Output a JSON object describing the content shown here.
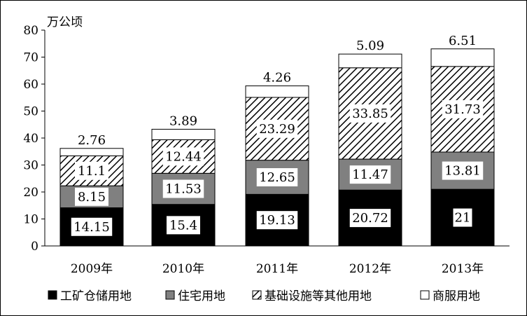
{
  "chart_data": {
    "type": "bar",
    "stacked": true,
    "unit_label": "万公顷",
    "categories": [
      "2009年",
      "2010年",
      "2011年",
      "2012年",
      "2013年"
    ],
    "series": [
      {
        "name": "工矿仓储用地",
        "values": [
          14.15,
          15.4,
          19.13,
          20.72,
          21
        ],
        "fill": "#000000",
        "pattern": "solid",
        "labels": [
          "14.15",
          "15.4",
          "19.13",
          "20.72",
          "21"
        ]
      },
      {
        "name": "住宅用地",
        "values": [
          8.15,
          11.53,
          12.65,
          11.47,
          13.81
        ],
        "fill": "#808080",
        "pattern": "solid",
        "labels": [
          "8.15",
          "11.53",
          "12.65",
          "11.47",
          "13.81"
        ]
      },
      {
        "name": "基础设施等其他用地",
        "values": [
          11.1,
          12.44,
          23.29,
          33.85,
          31.73
        ],
        "fill": "#ffffff",
        "pattern": "diagonal-hatch",
        "labels": [
          "11.1",
          "12.44",
          "23.29",
          "33.85",
          "31.73"
        ]
      },
      {
        "name": "商服用地",
        "values": [
          2.76,
          3.89,
          4.26,
          5.09,
          6.51
        ],
        "fill": "#ffffff",
        "pattern": "solid",
        "labels": [
          "2.76",
          "3.89",
          "4.26",
          "5.09",
          "6.51"
        ]
      }
    ],
    "ylim": [
      0,
      80
    ],
    "yticks": [
      "0",
      "10",
      "20",
      "30",
      "40",
      "50",
      "60",
      "70",
      "80"
    ],
    "grid": false,
    "legend": "bottom"
  }
}
